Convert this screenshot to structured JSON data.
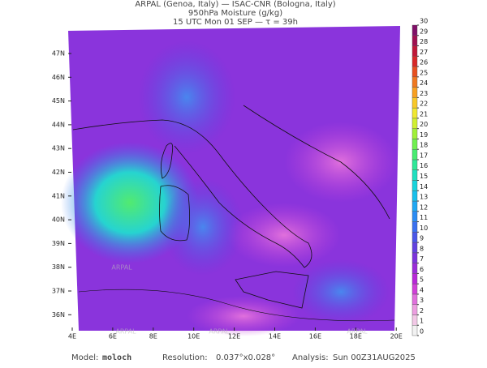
{
  "header": {
    "line1": "ARPAL (Genoa, Italy)  —  ISAC-CNR (Bologna, Italy)",
    "line2": "950hPa Moisture (g/kg)",
    "line3": "15 UTC Mon 01 SEP  —  τ = 39h"
  },
  "map": {
    "lat_ticks": [
      {
        "value": 47,
        "label": "47N"
      },
      {
        "value": 46,
        "label": "46N"
      },
      {
        "value": 45,
        "label": "45N"
      },
      {
        "value": 44,
        "label": "44N"
      },
      {
        "value": 43,
        "label": "43N"
      },
      {
        "value": 42,
        "label": "42N"
      },
      {
        "value": 41,
        "label": "41N"
      },
      {
        "value": 40,
        "label": "40N"
      },
      {
        "value": 39,
        "label": "39N"
      },
      {
        "value": 38,
        "label": "38N"
      },
      {
        "value": 37,
        "label": "37N"
      },
      {
        "value": 36,
        "label": "36N"
      }
    ],
    "lon_ticks": [
      {
        "value": 4,
        "label": "4E"
      },
      {
        "value": 6,
        "label": "6E"
      },
      {
        "value": 8,
        "label": "8E"
      },
      {
        "value": 10,
        "label": "10E"
      },
      {
        "value": 12,
        "label": "12E"
      },
      {
        "value": 14,
        "label": "14E"
      },
      {
        "value": 16,
        "label": "16E"
      },
      {
        "value": 18,
        "label": "18E"
      },
      {
        "value": 20,
        "label": "20E"
      }
    ],
    "watermarks": [
      "ARPAL",
      "ARPAL",
      "ARPAL",
      "ARPAL"
    ]
  },
  "colorbar": {
    "ticks": [
      0,
      1,
      2,
      3,
      4,
      5,
      6,
      7,
      8,
      9,
      10,
      11,
      12,
      13,
      14,
      15,
      16,
      17,
      18,
      19,
      20,
      21,
      22,
      23,
      24,
      25,
      26,
      27,
      28,
      29,
      30
    ],
    "colors": [
      "#f2f2f2",
      "#f2c8e6",
      "#ec9ee0",
      "#e070dc",
      "#d040d8",
      "#b828d8",
      "#9a2cd8",
      "#7c34dc",
      "#6242e0",
      "#4a56e8",
      "#3a70f0",
      "#2c8cf4",
      "#20a8f4",
      "#18c0ec",
      "#18d4dc",
      "#20e0c0",
      "#30e898",
      "#48ec70",
      "#70f050",
      "#a0f038",
      "#d0f030",
      "#f0e830",
      "#f8c828",
      "#f8a020",
      "#f07820",
      "#e85020",
      "#d82828",
      "#c01838",
      "#a01050",
      "#801068"
    ]
  },
  "footer": {
    "model_label": "Model:",
    "model": "moloch",
    "resolution_label": "Resolution:",
    "resolution": "0.037°x0.028°",
    "analysis_label": "Analysis:",
    "analysis": "Sun 00Z31AUG2025"
  }
}
